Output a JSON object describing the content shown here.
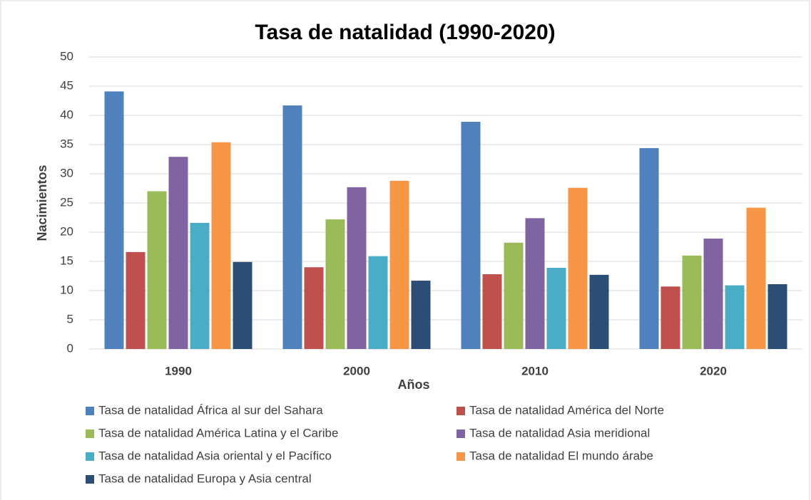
{
  "chart_data": {
    "type": "bar",
    "title": "Tasa de natalidad (1990-2020)",
    "x_label": "Años",
    "y_label": "Nacimientos",
    "categories": [
      "1990",
      "2000",
      "2010",
      "2020"
    ],
    "series": [
      {
        "name": "Tasa de natalidad África al sur del Sahara",
        "color": "#4f81bd",
        "values": [
          44.1,
          41.7,
          38.9,
          34.4
        ]
      },
      {
        "name": "Tasa de natalidad América del Norte",
        "color": "#c0504d",
        "values": [
          16.6,
          14.0,
          12.8,
          10.7
        ]
      },
      {
        "name": "Tasa de natalidad América Latina y el Caribe",
        "color": "#9bbb59",
        "values": [
          27.0,
          22.2,
          18.2,
          16.0
        ]
      },
      {
        "name": "Tasa de natalidad Asia meridional",
        "color": "#8064a2",
        "values": [
          32.9,
          27.7,
          22.4,
          18.9
        ]
      },
      {
        "name": "Tasa de natalidad Asia oriental y el Pacífico",
        "color": "#4bacc6",
        "values": [
          21.6,
          15.9,
          13.9,
          10.9
        ]
      },
      {
        "name": "Tasa de natalidad El mundo árabe",
        "color": "#f79646",
        "values": [
          35.4,
          28.8,
          27.6,
          24.2
        ]
      },
      {
        "name": "Tasa de natalidad Europa y Asia central",
        "color": "#2c4d75",
        "values": [
          14.9,
          11.7,
          12.7,
          11.1
        ]
      }
    ],
    "ylim": [
      0,
      50
    ],
    "yticks": [
      0,
      5,
      10,
      15,
      20,
      25,
      30,
      35,
      40,
      45,
      50
    ],
    "grid": true,
    "legend": "bottom"
  }
}
